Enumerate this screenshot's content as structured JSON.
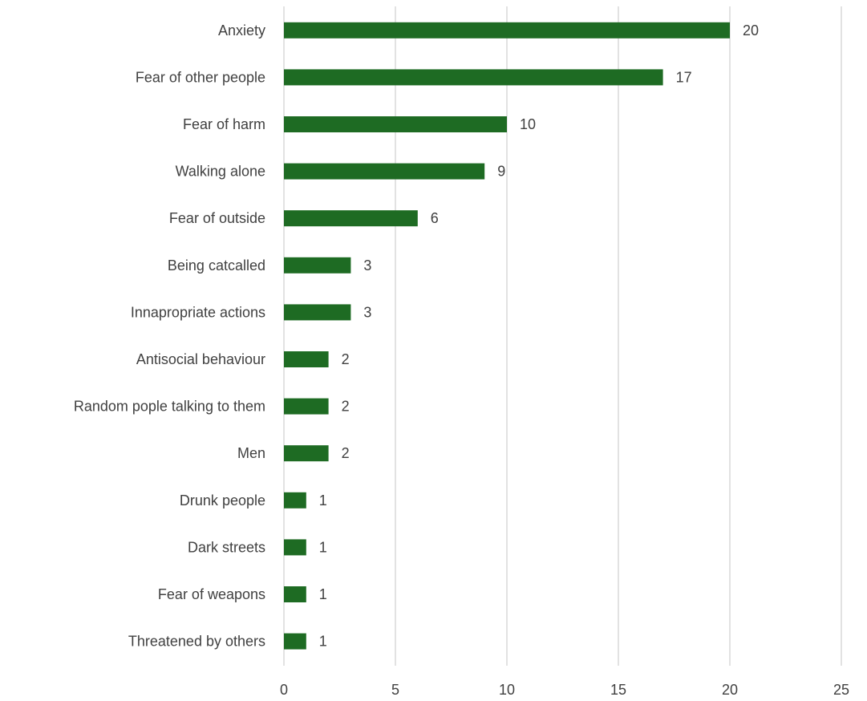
{
  "chart_data": {
    "type": "bar",
    "orientation": "horizontal",
    "title": "",
    "xlabel": "",
    "ylabel": "",
    "categories": [
      "Anxiety",
      "Fear of other people",
      "Fear of harm",
      "Walking alone",
      "Fear of outside",
      "Being catcalled",
      "Innapropriate actions",
      "Antisocial behaviour",
      "Random pople talking to them",
      "Men",
      "Drunk people",
      "Dark streets",
      "Fear of weapons",
      "Threatened by others"
    ],
    "values": [
      20,
      17,
      10,
      9,
      6,
      3,
      3,
      2,
      2,
      2,
      1,
      1,
      1,
      1
    ],
    "data_labels": [
      "20",
      "17",
      "10",
      "9",
      "6",
      "3",
      "3",
      "2",
      "2",
      "2",
      "1",
      "1",
      "1",
      "1"
    ],
    "xlim": [
      0,
      25
    ],
    "x_ticks": [
      0,
      5,
      10,
      15,
      20,
      25
    ],
    "x_tick_labels": [
      "0",
      "5",
      "10",
      "15",
      "20",
      "25"
    ],
    "grid": "vertical",
    "legend": "none",
    "bar_color": "#1e6b23",
    "grid_color": "#d9d9d9",
    "text_color": "#404040"
  }
}
